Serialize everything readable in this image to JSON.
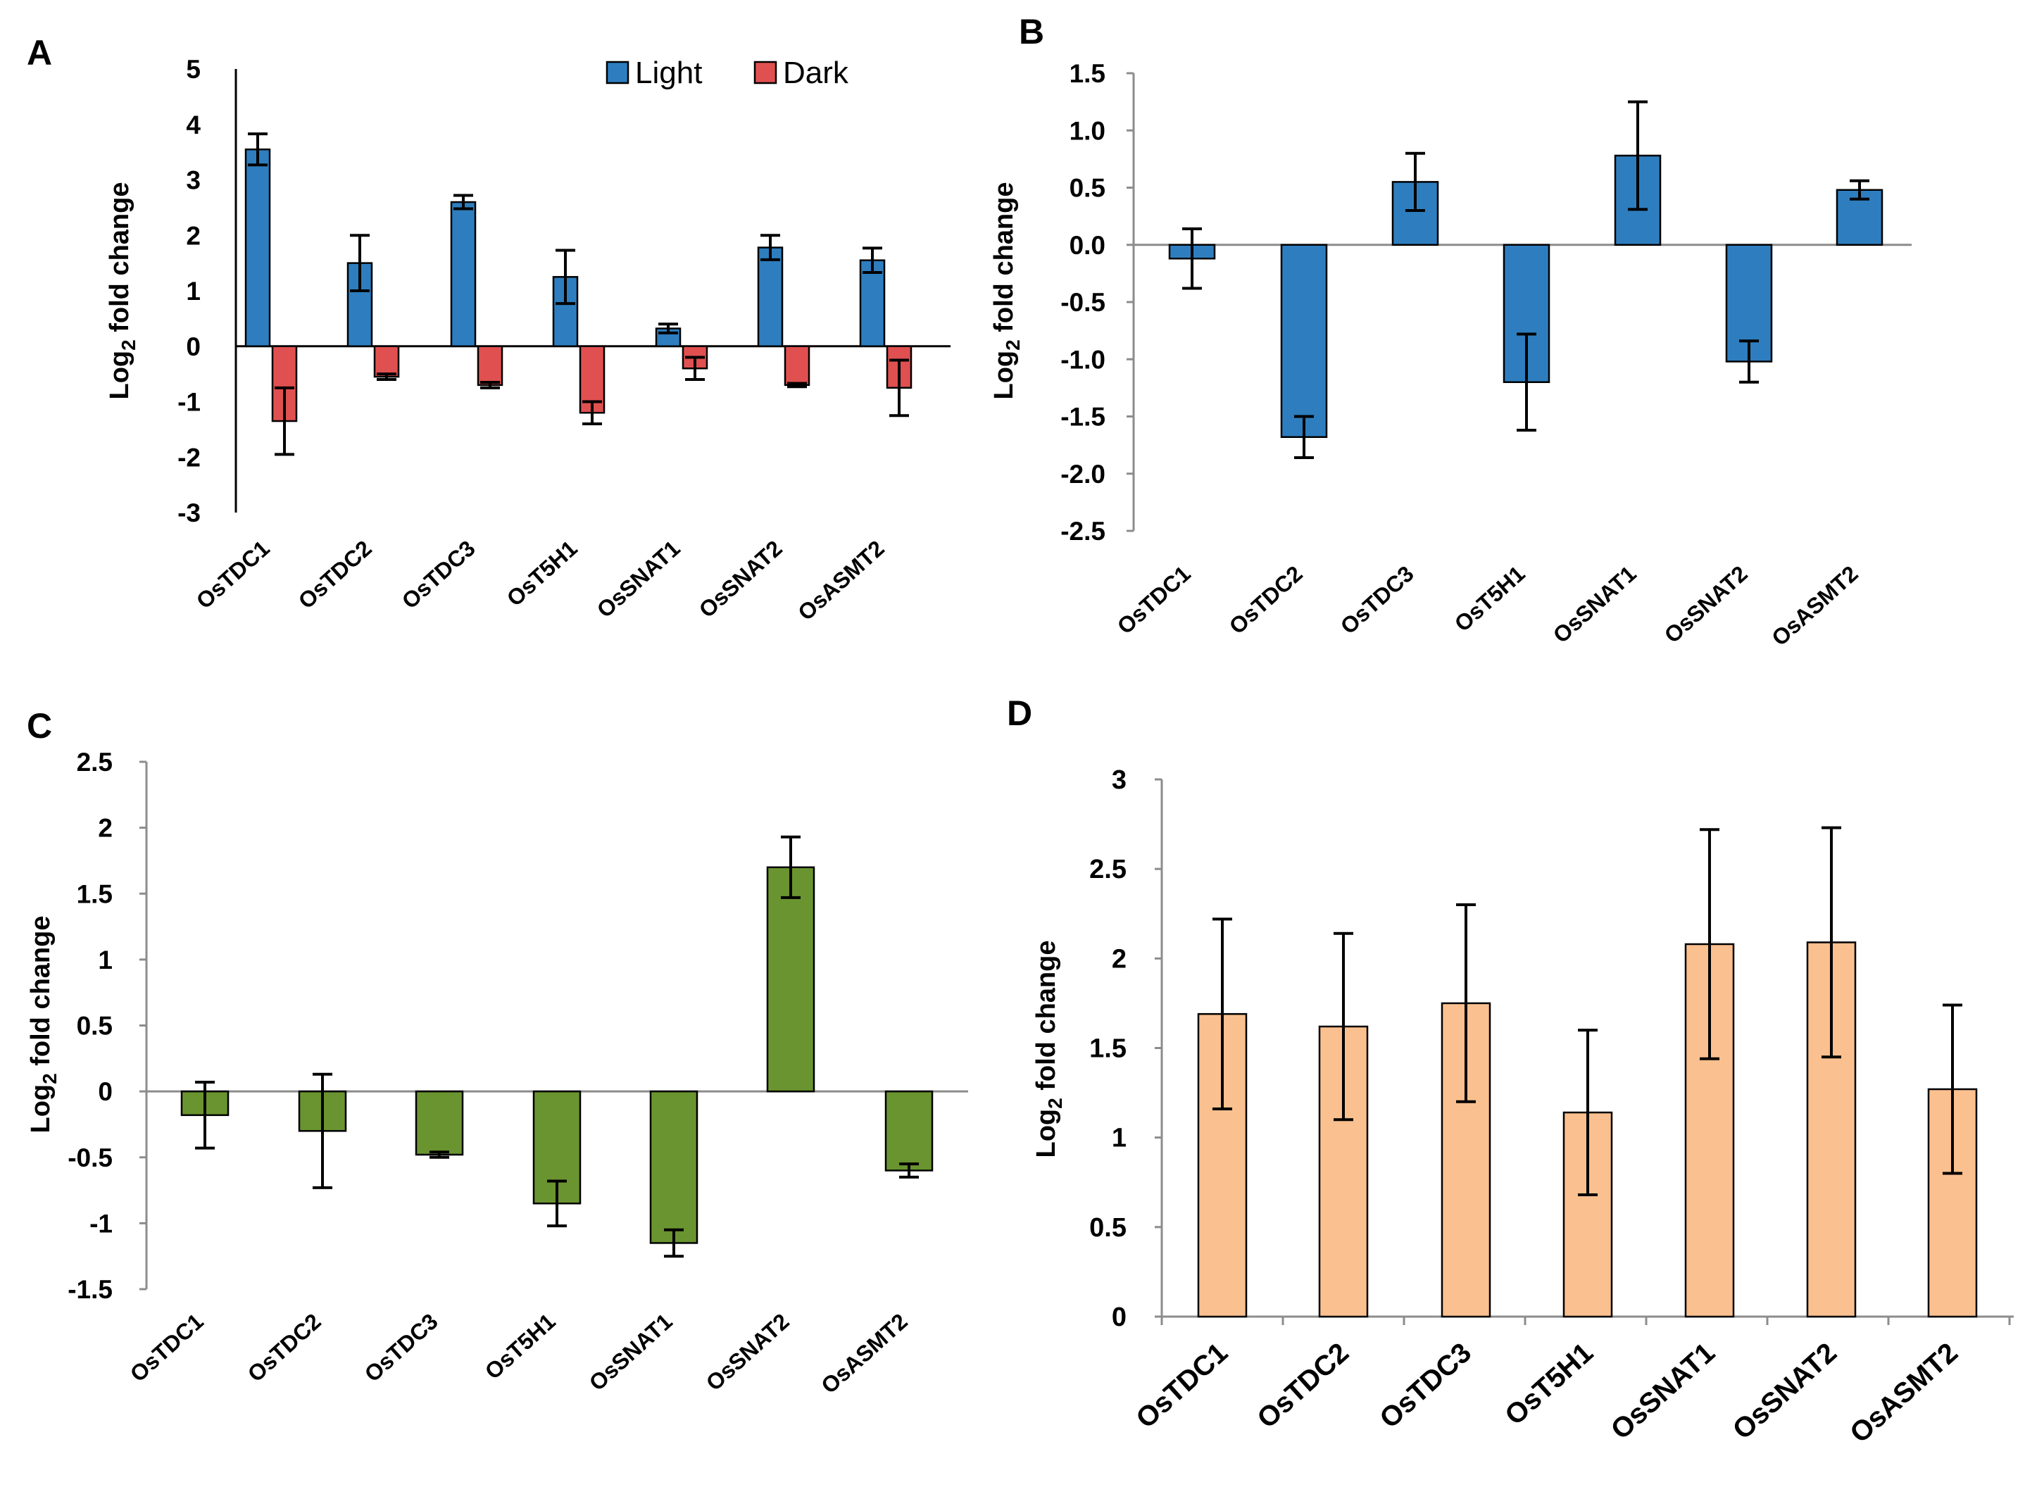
{
  "figure": {
    "colors": {
      "light": "#2e7ebf",
      "dark": "#e05050",
      "green": "#6a9430",
      "peach": "#fbc08f"
    }
  },
  "chart_data": [
    {
      "panel": "A",
      "type": "bar",
      "title": "",
      "xlabel": "",
      "ylabel": "Log2 fold change",
      "ylabel_base": "Log",
      "ylabel_sub": "2",
      "ylabel_rest": " fold change",
      "ylim": [
        -3,
        5
      ],
      "yticks": [
        5,
        4,
        3,
        2,
        1,
        0,
        -1,
        -2,
        -3
      ],
      "categories": [
        "OsTDC1",
        "OsTDC2",
        "OsTDC3",
        "OsT5H1",
        "OsSNAT1",
        "OsSNAT2",
        "OsASMT2"
      ],
      "legend_position": "top-right",
      "series": [
        {
          "name": "Light",
          "color": "#2e7ebf",
          "values": [
            3.55,
            1.5,
            2.6,
            1.25,
            0.32,
            1.78,
            1.55
          ],
          "errors": [
            0.28,
            0.5,
            0.12,
            0.48,
            0.08,
            0.22,
            0.22
          ]
        },
        {
          "name": "Dark",
          "color": "#e05050",
          "values": [
            -1.35,
            -0.55,
            -0.7,
            -1.2,
            -0.4,
            -0.7,
            -0.75
          ],
          "errors": [
            0.6,
            0.05,
            0.05,
            0.2,
            0.2,
            0.03,
            0.5
          ]
        }
      ]
    },
    {
      "panel": "B",
      "type": "bar",
      "title": "",
      "xlabel": "",
      "ylabel": "Log2  fold change",
      "ylabel_base": "Log",
      "ylabel_sub": "2",
      "ylabel_rest": "  fold change",
      "ylim": [
        -2.5,
        1.5
      ],
      "yticks": [
        "1.5",
        "1.0",
        "0.5",
        "0.0",
        "-0.5",
        "-1.0",
        "-1.5",
        "-2.0",
        "-2.5"
      ],
      "categories": [
        "OsTDC1",
        "OsTDC2",
        "OsTDC3",
        "OsT5H1",
        "OsSNAT1",
        "OsSNAT2",
        "OsASMT2"
      ],
      "series": [
        {
          "name": "",
          "color": "#2e7ebf",
          "values": [
            -0.12,
            -1.68,
            0.55,
            -1.2,
            0.78,
            -1.02,
            0.48
          ],
          "errors": [
            0.26,
            0.18,
            0.25,
            0.42,
            0.47,
            0.18,
            0.08
          ]
        }
      ]
    },
    {
      "panel": "C",
      "type": "bar",
      "title": "",
      "xlabel": "",
      "ylabel": "Log2 fold change",
      "ylabel_base": "Log",
      "ylabel_sub": "2",
      "ylabel_rest": " fold change",
      "ylim": [
        -1.5,
        2.5
      ],
      "yticks": [
        "2.5",
        "2",
        "1.5",
        "1",
        "0.5",
        "0",
        "-0.5",
        "-1",
        "-1.5"
      ],
      "categories": [
        "OsTDC1",
        "OsTDC2",
        "OsTDC3",
        "OsT5H1",
        "OsSNAT1",
        "OsSNAT2",
        "OsASMT2"
      ],
      "series": [
        {
          "name": "",
          "color": "#6a9430",
          "values": [
            -0.18,
            -0.3,
            -0.48,
            -0.85,
            -1.15,
            1.7,
            -0.6
          ],
          "errors": [
            0.25,
            0.43,
            0.02,
            0.17,
            0.1,
            0.23,
            0.05
          ]
        }
      ]
    },
    {
      "panel": "D",
      "type": "bar",
      "title": "",
      "xlabel": "",
      "ylabel": "Log2 fold change",
      "ylabel_base": "Log",
      "ylabel_sub": "2",
      "ylabel_rest": " fold change",
      "ylim": [
        0,
        3
      ],
      "yticks": [
        "3",
        "2.5",
        "2",
        "1.5",
        "1",
        "0.5",
        "0"
      ],
      "categories": [
        "OsTDC1",
        "OsTDC2",
        "OsTDC3",
        "OsT5H1",
        "OsSNAT1",
        "OsSNAT2",
        "OsASMT2"
      ],
      "series": [
        {
          "name": "",
          "color": "#fbc08f",
          "values": [
            1.69,
            1.62,
            1.75,
            1.14,
            2.08,
            2.09,
            1.27
          ],
          "errors": [
            0.53,
            0.52,
            0.55,
            0.46,
            0.64,
            0.64,
            0.47
          ]
        }
      ]
    }
  ]
}
